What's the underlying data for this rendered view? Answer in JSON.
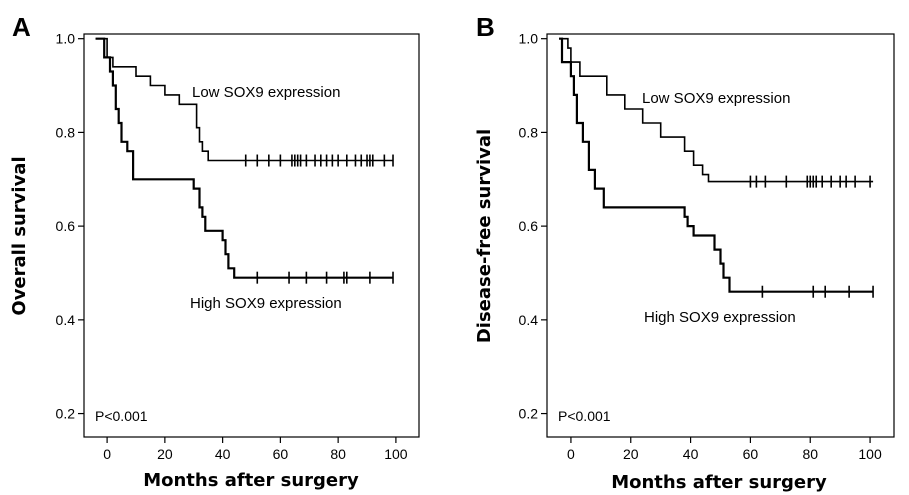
{
  "chart_data": [
    {
      "type": "line",
      "panel_label": "A",
      "xlabel": "Months after surgery",
      "ylabel": "Overall survival",
      "xlim": [
        -8,
        108
      ],
      "ylim": [
        0.15,
        1.01
      ],
      "xticks": [
        0,
        20,
        40,
        60,
        80,
        100
      ],
      "yticks": [
        0.2,
        0.4,
        0.6,
        0.8,
        1.0
      ],
      "ytick_labels": [
        "0.2",
        "0.4",
        "0.6",
        "0.8",
        "1.0"
      ],
      "annotation": "P<0.001",
      "series": [
        {
          "label": "Low SOX9 expression",
          "steps": [
            [
              -4,
              1.0
            ],
            [
              0,
              0.96
            ],
            [
              2,
              0.94
            ],
            [
              10,
              0.92
            ],
            [
              15,
              0.9
            ],
            [
              20,
              0.88
            ],
            [
              25,
              0.86
            ],
            [
              31,
              0.81
            ],
            [
              32,
              0.78
            ],
            [
              33,
              0.76
            ],
            [
              35,
              0.74
            ],
            [
              99,
              0.74
            ]
          ],
          "censored": [
            [
              48,
              0.74
            ],
            [
              52,
              0.74
            ],
            [
              56,
              0.74
            ],
            [
              60,
              0.74
            ],
            [
              64,
              0.74
            ],
            [
              65,
              0.74
            ],
            [
              66,
              0.74
            ],
            [
              67,
              0.74
            ],
            [
              69,
              0.74
            ],
            [
              72,
              0.74
            ],
            [
              74,
              0.74
            ],
            [
              76,
              0.74
            ],
            [
              78,
              0.74
            ],
            [
              80,
              0.74
            ],
            [
              83,
              0.74
            ],
            [
              86,
              0.74
            ],
            [
              88,
              0.74
            ],
            [
              90,
              0.74
            ],
            [
              91,
              0.74
            ],
            [
              92,
              0.74
            ],
            [
              96,
              0.74
            ],
            [
              99,
              0.74
            ]
          ]
        },
        {
          "label": "High SOX9 expression",
          "steps": [
            [
              -4,
              1.0
            ],
            [
              -1,
              0.96
            ],
            [
              1,
              0.93
            ],
            [
              2,
              0.9
            ],
            [
              3,
              0.85
            ],
            [
              4,
              0.82
            ],
            [
              5,
              0.78
            ],
            [
              7,
              0.76
            ],
            [
              9,
              0.7
            ],
            [
              30,
              0.68
            ],
            [
              32,
              0.64
            ],
            [
              33,
              0.62
            ],
            [
              34,
              0.59
            ],
            [
              40,
              0.57
            ],
            [
              41,
              0.54
            ],
            [
              42,
              0.51
            ],
            [
              44,
              0.49
            ],
            [
              99,
              0.49
            ]
          ],
          "censored": [
            [
              52,
              0.49
            ],
            [
              63,
              0.49
            ],
            [
              69,
              0.49
            ],
            [
              76,
              0.49
            ],
            [
              82,
              0.49
            ],
            [
              83,
              0.49
            ],
            [
              91,
              0.49
            ],
            [
              99,
              0.49
            ]
          ]
        }
      ]
    },
    {
      "type": "line",
      "panel_label": "B",
      "xlabel": "Months after surgery",
      "ylabel": "Disease-free survival",
      "xlim": [
        -8,
        108
      ],
      "ylim": [
        0.15,
        1.01
      ],
      "xticks": [
        0,
        20,
        40,
        60,
        80,
        100
      ],
      "yticks": [
        0.2,
        0.4,
        0.6,
        0.8,
        1.0
      ],
      "ytick_labels": [
        "0.2",
        "0.4",
        "0.6",
        "0.8",
        "1.0"
      ],
      "annotation": "P<0.001",
      "series": [
        {
          "label": "Low SOX9 expression",
          "steps": [
            [
              -4,
              1.0
            ],
            [
              -1,
              0.98
            ],
            [
              0,
              0.95
            ],
            [
              3,
              0.92
            ],
            [
              12,
              0.88
            ],
            [
              18,
              0.85
            ],
            [
              24,
              0.82
            ],
            [
              30,
              0.79
            ],
            [
              38,
              0.76
            ],
            [
              41,
              0.73
            ],
            [
              44,
              0.71
            ],
            [
              46,
              0.695
            ],
            [
              101,
              0.695
            ]
          ],
          "censored": [
            [
              60,
              0.695
            ],
            [
              62,
              0.695
            ],
            [
              65,
              0.695
            ],
            [
              72,
              0.695
            ],
            [
              79,
              0.695
            ],
            [
              80,
              0.695
            ],
            [
              81,
              0.695
            ],
            [
              82,
              0.695
            ],
            [
              84,
              0.695
            ],
            [
              87,
              0.695
            ],
            [
              90,
              0.695
            ],
            [
              92,
              0.695
            ],
            [
              95,
              0.695
            ],
            [
              100,
              0.695
            ]
          ]
        },
        {
          "label": "High SOX9 expression",
          "steps": [
            [
              -4,
              1.0
            ],
            [
              -3,
              0.95
            ],
            [
              0,
              0.92
            ],
            [
              1,
              0.88
            ],
            [
              2,
              0.82
            ],
            [
              4,
              0.78
            ],
            [
              6,
              0.72
            ],
            [
              8,
              0.68
            ],
            [
              11,
              0.64
            ],
            [
              38,
              0.62
            ],
            [
              39,
              0.6
            ],
            [
              41,
              0.58
            ],
            [
              48,
              0.55
            ],
            [
              50,
              0.52
            ],
            [
              51,
              0.49
            ],
            [
              53,
              0.46
            ],
            [
              101,
              0.46
            ]
          ],
          "censored": [
            [
              64,
              0.46
            ],
            [
              81,
              0.46
            ],
            [
              85,
              0.46
            ],
            [
              93,
              0.46
            ],
            [
              101,
              0.46
            ]
          ]
        }
      ]
    }
  ]
}
